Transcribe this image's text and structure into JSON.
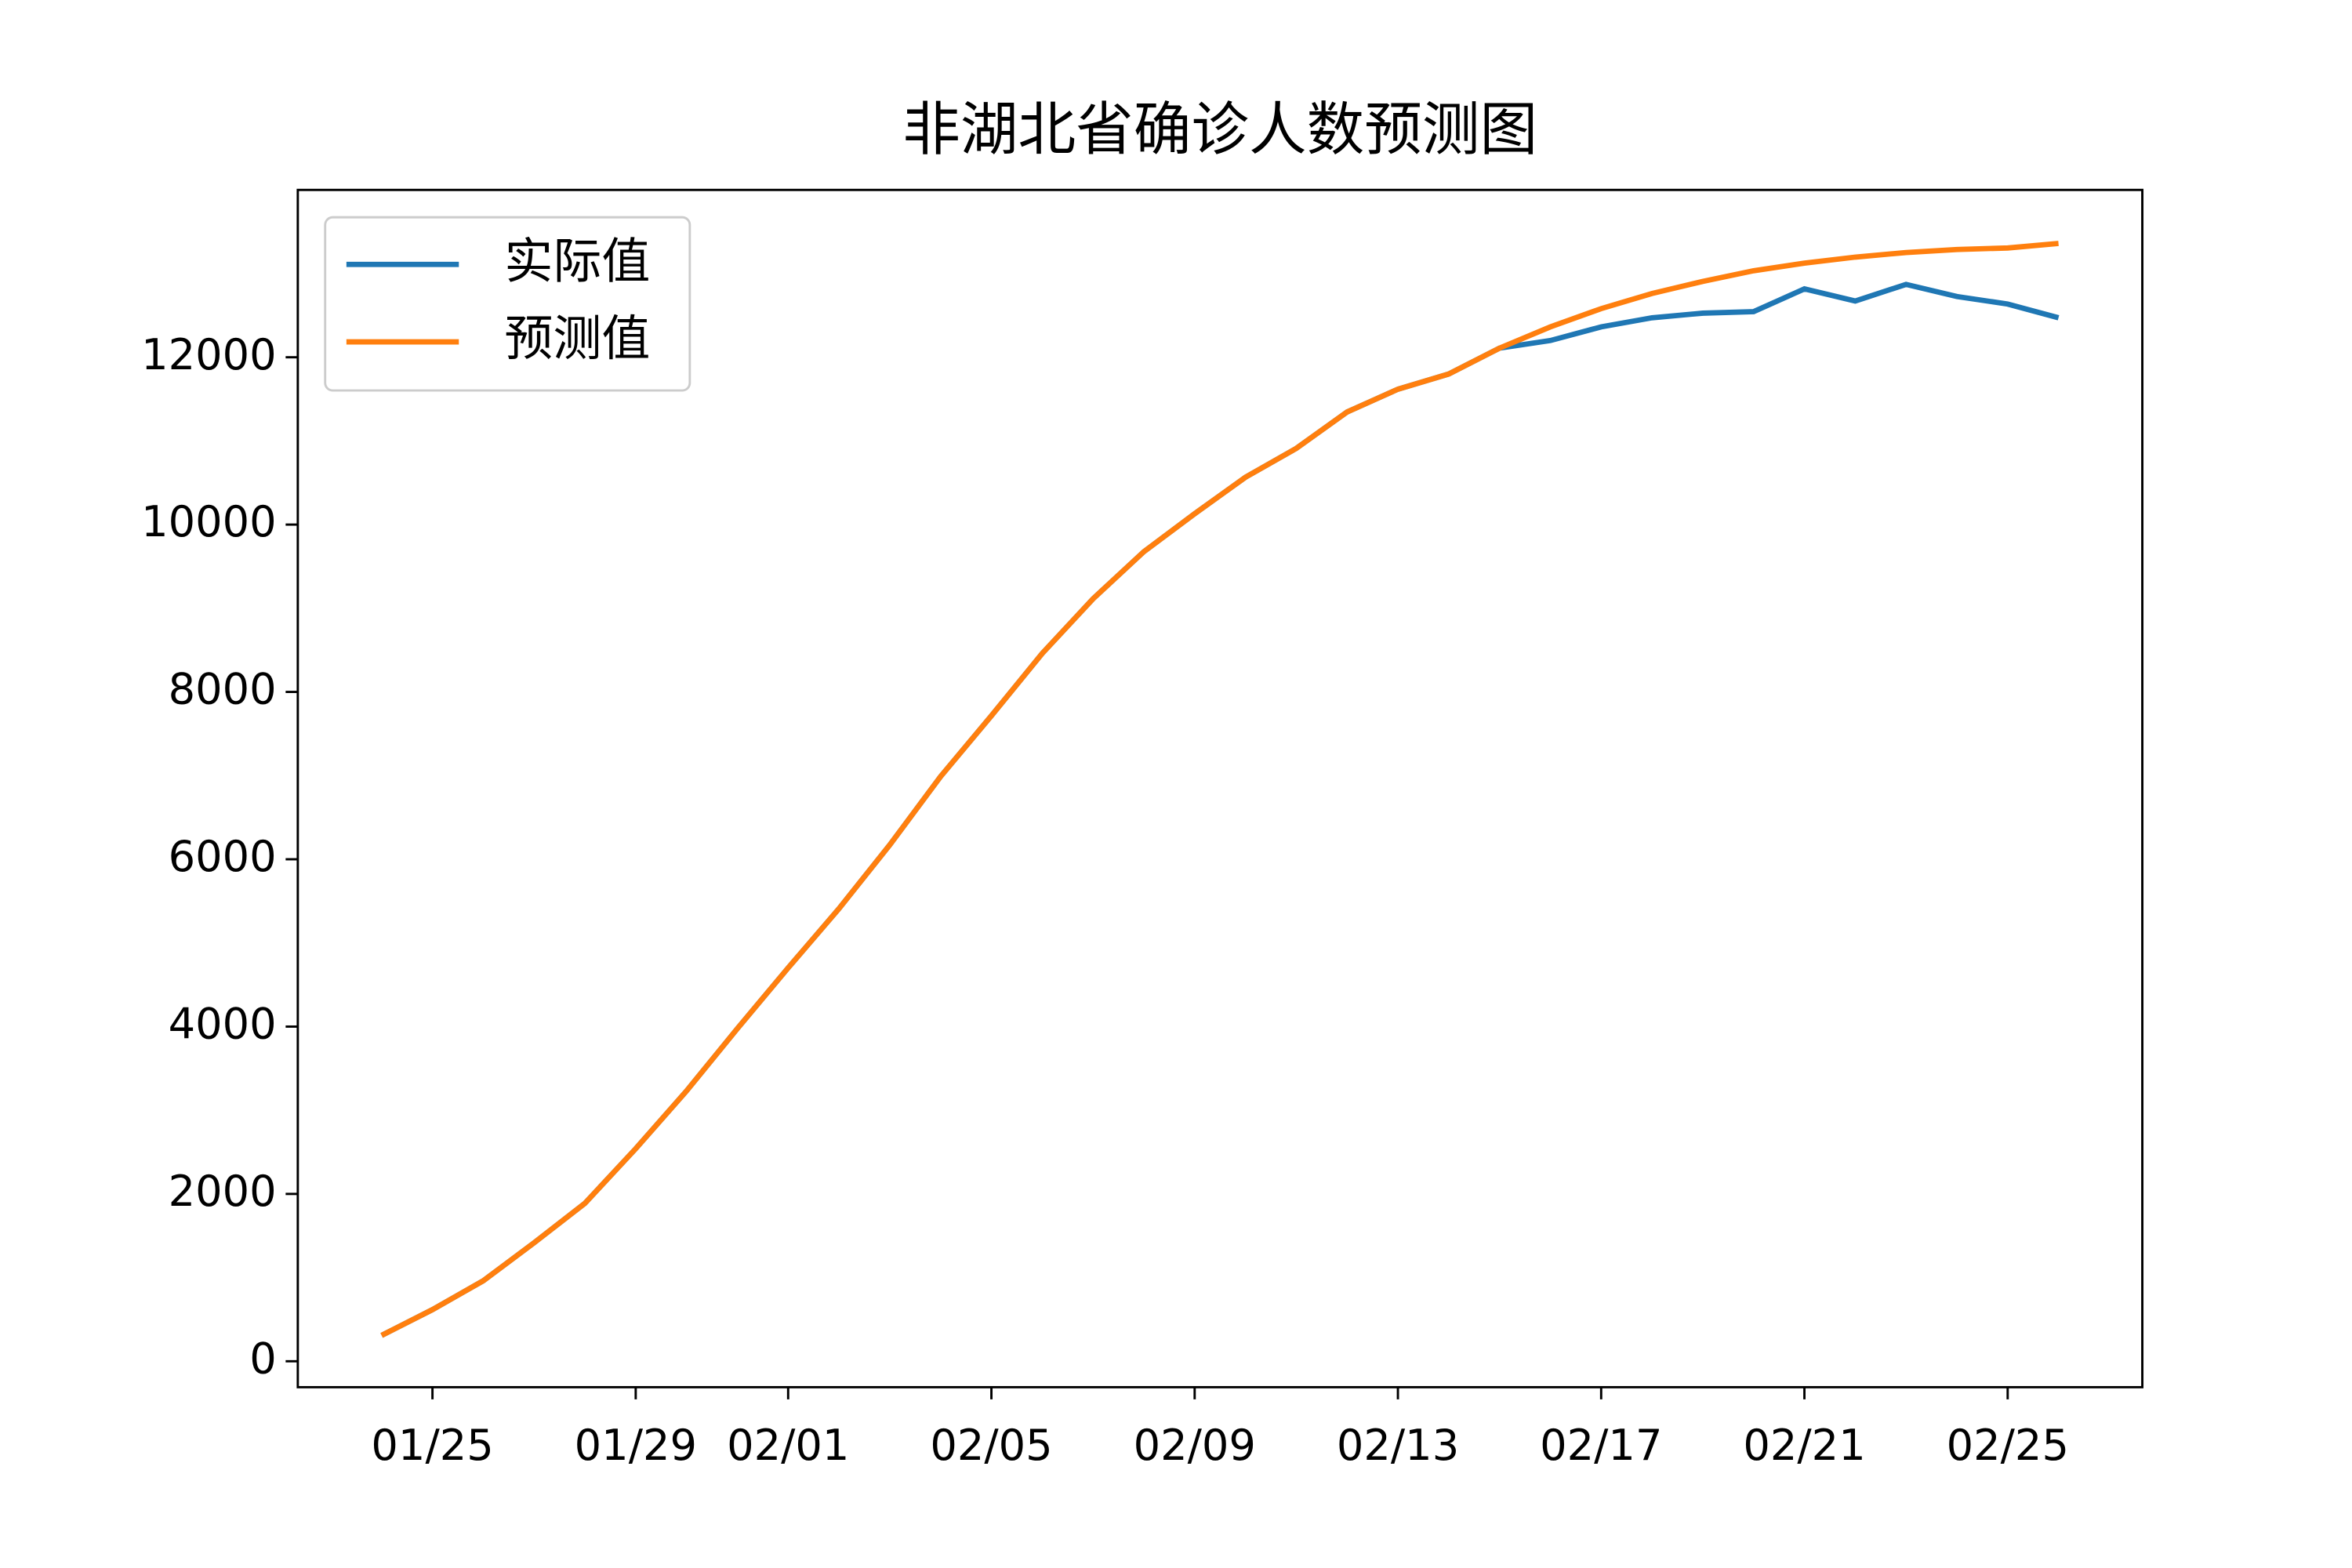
{
  "chart_data": {
    "type": "line",
    "title": "非湖北省确诊人数预测图",
    "x": [
      "01/24",
      "01/25",
      "01/26",
      "01/27",
      "01/28",
      "01/29",
      "01/30",
      "01/31",
      "02/01",
      "02/02",
      "02/03",
      "02/04",
      "02/05",
      "02/06",
      "02/07",
      "02/08",
      "02/09",
      "02/10",
      "02/11",
      "02/12",
      "02/13",
      "02/14",
      "02/15",
      "02/16",
      "02/17",
      "02/18",
      "02/19",
      "02/20",
      "02/21",
      "02/22",
      "02/23",
      "02/24",
      "02/25",
      "02/26"
    ],
    "series": [
      {
        "name": "实际值",
        "color": "#1f77b4",
        "values": [
          309,
          617,
          962,
          1416,
          1888,
          2541,
          3231,
          3976,
          4702,
          5410,
          6172,
          6989,
          7715,
          8460,
          9113,
          9676,
          10130,
          10566,
          10911,
          11346,
          11618,
          11800,
          12109,
          12200,
          12363,
          12472,
          12527,
          12545,
          12817,
          12672,
          12871,
          12726,
          12636,
          12472
        ]
      },
      {
        "name": "预测值",
        "color": "#ff7f0e",
        "values": [
          309,
          617,
          962,
          1416,
          1888,
          2541,
          3231,
          3976,
          4702,
          5410,
          6172,
          6989,
          7715,
          8460,
          9113,
          9676,
          10130,
          10566,
          10911,
          11346,
          11618,
          11800,
          12109,
          12363,
          12581,
          12762,
          12907,
          13034,
          13125,
          13197,
          13252,
          13288,
          13306,
          13360
        ]
      }
    ],
    "ylim": [
      -310,
      14000
    ],
    "yticks": [
      0,
      2000,
      4000,
      6000,
      8000,
      10000,
      12000
    ],
    "xticks": [
      "01/25",
      "01/29",
      "02/01",
      "02/05",
      "02/09",
      "02/13",
      "02/17",
      "02/21",
      "02/25"
    ],
    "legend": "upper left"
  }
}
